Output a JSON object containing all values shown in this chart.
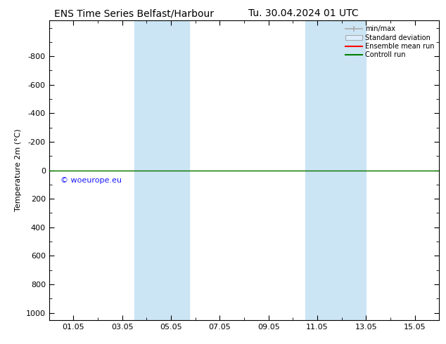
{
  "title_left": "ENS Time Series Belfast/Harbour",
  "title_right": "Tu. 30.04.2024 01 UTC",
  "ylabel": "Temperature 2m (°C)",
  "ylim_bottom": 1050,
  "ylim_top": -1050,
  "yticks": [
    -800,
    -600,
    -400,
    -200,
    0,
    200,
    400,
    600,
    800,
    1000
  ],
  "xtick_labels": [
    "01.05",
    "03.05",
    "05.05",
    "07.05",
    "09.05",
    "11.05",
    "13.05",
    "15.05"
  ],
  "xtick_positions": [
    1,
    3,
    5,
    7,
    9,
    11,
    13,
    15
  ],
  "x_min": 0,
  "x_max": 16,
  "blue_bands": [
    [
      3.5,
      4.5
    ],
    [
      4.5,
      5.75
    ],
    [
      10.5,
      11.75
    ],
    [
      11.75,
      13.0
    ]
  ],
  "control_run_y": 0,
  "ensemble_mean_y": 0,
  "watermark": "© woeurope.eu",
  "watermark_color": "#1a1aff",
  "background_color": "#ffffff",
  "plot_bg_color": "#ffffff",
  "band_color": "#cce5f5",
  "legend_items": [
    "min/max",
    "Standard deviation",
    "Ensemble mean run",
    "Controll run"
  ],
  "legend_line_colors": [
    "#aaaaaa",
    "#cccccc",
    "#ff0000",
    "#008000"
  ],
  "title_fontsize": 10,
  "axis_fontsize": 8,
  "tick_fontsize": 8
}
